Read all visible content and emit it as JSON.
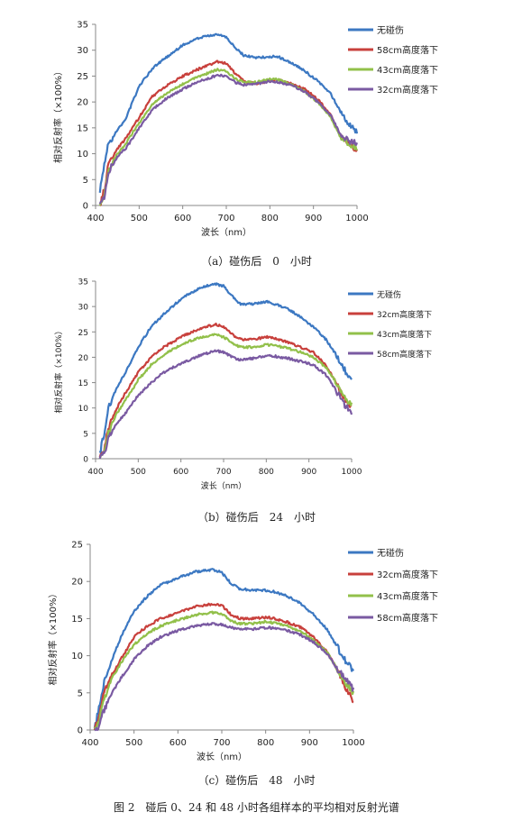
{
  "figure_caption": "图 2　碰后 0、24 和 48 小时各组样本的平均相对反射光谱",
  "colors": {
    "blue": "#3c78c2",
    "red": "#c8403c",
    "green": "#92c04a",
    "purple": "#7a5aa2"
  },
  "chart_data": [
    {
      "type": "line",
      "caption": "（a）碰伤后　0　小时",
      "xlabel": "波长（nm）",
      "ylabel": "相对反射率（×100%）",
      "xlim": [
        400,
        1000
      ],
      "ylim": [
        0,
        35
      ],
      "x_ticks": [
        "400",
        "500",
        "600",
        "700",
        "800",
        "900",
        "1000"
      ],
      "y_ticks": [
        "0",
        "5",
        "10",
        "15",
        "20",
        "25",
        "30",
        "35"
      ],
      "x": [
        410,
        420,
        430,
        450,
        470,
        500,
        530,
        560,
        600,
        640,
        680,
        700,
        720,
        740,
        770,
        800,
        820,
        850,
        880,
        910,
        940,
        960,
        980,
        1000
      ],
      "series": [
        {
          "name": "无碰伤",
          "color": "blue",
          "values": [
            3,
            8,
            12,
            14.5,
            17,
            23,
            26.5,
            28.5,
            31,
            32.5,
            33,
            32.5,
            30.5,
            29,
            28.5,
            28.8,
            28.7,
            27.5,
            26,
            24,
            21.5,
            18.5,
            16,
            14
          ]
        },
        {
          "name": "58cm高度落下",
          "color": "red",
          "values": [
            0,
            3,
            8,
            11,
            13,
            17,
            21,
            23,
            25,
            26.5,
            27.8,
            27.5,
            25.5,
            24,
            23.5,
            24,
            24.3,
            23.5,
            22.5,
            20.5,
            17.5,
            14,
            12,
            10.5
          ]
        },
        {
          "name": "43cm高度落下",
          "color": "green",
          "values": [
            0,
            2,
            7,
            10,
            12,
            16,
            19.5,
            21.5,
            23.5,
            25,
            26.3,
            26,
            24.5,
            23.8,
            23.8,
            24.5,
            24.3,
            23.3,
            22,
            20,
            17,
            13.5,
            12,
            11
          ]
        },
        {
          "name": "32cm高度落下",
          "color": "purple",
          "values": [
            0,
            1.5,
            6.5,
            9.5,
            11,
            15,
            18.5,
            20.5,
            22.5,
            24,
            25.2,
            25,
            23.8,
            23.3,
            23.5,
            24,
            23.8,
            23.2,
            22,
            20,
            17.5,
            14,
            12.5,
            12
          ]
        }
      ]
    },
    {
      "type": "line",
      "caption": "（b）碰伤后　24　小时",
      "xlabel": "波长（nm）",
      "ylabel": "相对反射率（×100%）",
      "xlim": [
        400,
        1000
      ],
      "ylim": [
        0,
        35
      ],
      "x_ticks": [
        "400",
        "500",
        "600",
        "700",
        "800",
        "900",
        "1000"
      ],
      "y_ticks": [
        "0",
        "5",
        "10",
        "15",
        "20",
        "25",
        "30",
        "35"
      ],
      "x": [
        410,
        420,
        430,
        450,
        470,
        500,
        530,
        560,
        600,
        640,
        680,
        700,
        720,
        740,
        770,
        800,
        820,
        850,
        880,
        910,
        940,
        960,
        980,
        1000
      ],
      "series": [
        {
          "name": "无碰伤",
          "color": "blue",
          "values": [
            1,
            5,
            10,
            14,
            17,
            22,
            26,
            28.5,
            31.5,
            33.5,
            34.5,
            34,
            32,
            30.5,
            30.5,
            31,
            30.5,
            29.5,
            28,
            26,
            23.5,
            21,
            18,
            15.5
          ]
        },
        {
          "name": "32cm高度落下",
          "color": "red",
          "values": [
            0,
            2,
            6,
            10,
            13,
            17,
            20,
            22,
            24,
            25.5,
            26.5,
            26,
            24.5,
            23.5,
            23.5,
            24,
            23.8,
            23,
            22,
            21,
            18.5,
            15.5,
            12,
            10
          ]
        },
        {
          "name": "43cm高度落下",
          "color": "green",
          "values": [
            0,
            1.5,
            5,
            9,
            11.5,
            15.5,
            18.5,
            20.5,
            22.5,
            23.8,
            24.5,
            24,
            22.8,
            22,
            22,
            22.5,
            22.3,
            21.8,
            21,
            20,
            18,
            15.5,
            12.5,
            10.5
          ]
        },
        {
          "name": "58cm高度落下",
          "color": "purple",
          "values": [
            0,
            1,
            4,
            7,
            9,
            12.5,
            15,
            17,
            18.8,
            20.2,
            21.3,
            21,
            20,
            19.5,
            19.8,
            20.3,
            20.2,
            19.8,
            19.2,
            18.5,
            16.5,
            14,
            11,
            9
          ]
        }
      ]
    },
    {
      "type": "line",
      "caption": "（c）碰伤后　48　小时",
      "xlabel": "波长（nm）",
      "ylabel": "相对反射率（×100%）",
      "xlim": [
        400,
        1000
      ],
      "ylim": [
        0,
        25
      ],
      "x_ticks": [
        "400",
        "500",
        "600",
        "700",
        "800",
        "900",
        "1000"
      ],
      "y_ticks": [
        "0",
        "5",
        "10",
        "15",
        "20",
        "25"
      ],
      "x": [
        410,
        420,
        430,
        450,
        470,
        500,
        530,
        560,
        600,
        640,
        680,
        700,
        720,
        740,
        770,
        800,
        820,
        850,
        880,
        910,
        940,
        960,
        980,
        1000
      ],
      "series": [
        {
          "name": "无碰伤",
          "color": "blue",
          "values": [
            0,
            3,
            6,
            9.5,
            12.5,
            16,
            18,
            19.5,
            20.5,
            21.3,
            21.6,
            21.2,
            19.8,
            19,
            18.8,
            18.8,
            18.6,
            18,
            17,
            15.5,
            13.5,
            11.5,
            9.5,
            8
          ]
        },
        {
          "name": "32cm高度落下",
          "color": "red",
          "values": [
            0,
            1.5,
            5,
            7.5,
            9.5,
            12.5,
            14,
            15,
            15.8,
            16.6,
            17,
            16.8,
            15.6,
            15,
            15,
            15.2,
            15,
            14.5,
            13.8,
            12.5,
            10.5,
            8.5,
            6,
            4
          ]
        },
        {
          "name": "43cm高度落下",
          "color": "green",
          "values": [
            0,
            1,
            4,
            7,
            9,
            11.5,
            13,
            14,
            14.8,
            15.5,
            15.8,
            15.6,
            14.8,
            14.3,
            14.3,
            14.6,
            14.4,
            14,
            13.3,
            12,
            10.5,
            8.5,
            6.5,
            5
          ]
        },
        {
          "name": "58cm高度落下",
          "color": "purple",
          "values": [
            0,
            0.5,
            2.5,
            5,
            7,
            9.5,
            11.3,
            12.5,
            13.4,
            14,
            14.3,
            14.2,
            13.8,
            13.6,
            13.6,
            13.8,
            13.7,
            13.4,
            12.8,
            11.8,
            10.3,
            8.5,
            7,
            5.5
          ]
        }
      ]
    }
  ]
}
